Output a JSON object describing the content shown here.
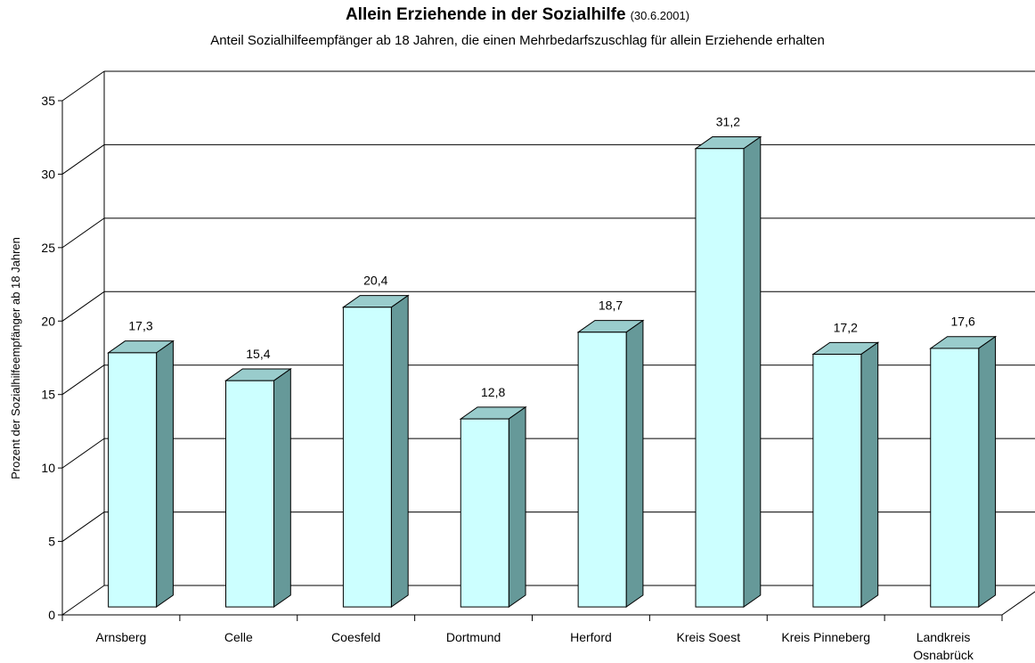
{
  "chart_data": {
    "type": "bar3d",
    "title": "Allein Erziehende in der Sozialhilfe",
    "title_note": "(30.6.2001)",
    "subtitle": "Anteil Sozialhilfeempfänger ab 18 Jahren, die einen Mehrbedarfszuschlag für allein Erziehende erhalten",
    "y_label": "Prozent der Sozialhilfeempfänger ab 18 Jahren",
    "categories": [
      "Arnsberg",
      "Celle",
      "Coesfeld",
      "Dortmund",
      "Herford",
      "Kreis Soest",
      "Kreis Pinneberg",
      "Landkreis Osnabrück"
    ],
    "values": [
      17.3,
      15.4,
      20.4,
      12.8,
      18.7,
      31.2,
      17.2,
      17.6
    ],
    "value_labels": [
      "17,3",
      "15,4",
      "20,4",
      "12,8",
      "18,7",
      "31,2",
      "17,2",
      "17,6"
    ],
    "color": "#ccffff",
    "ylim": [
      0,
      35
    ],
    "yticks": [
      0,
      5,
      10,
      15,
      20,
      25,
      30,
      35
    ],
    "grid": true
  }
}
